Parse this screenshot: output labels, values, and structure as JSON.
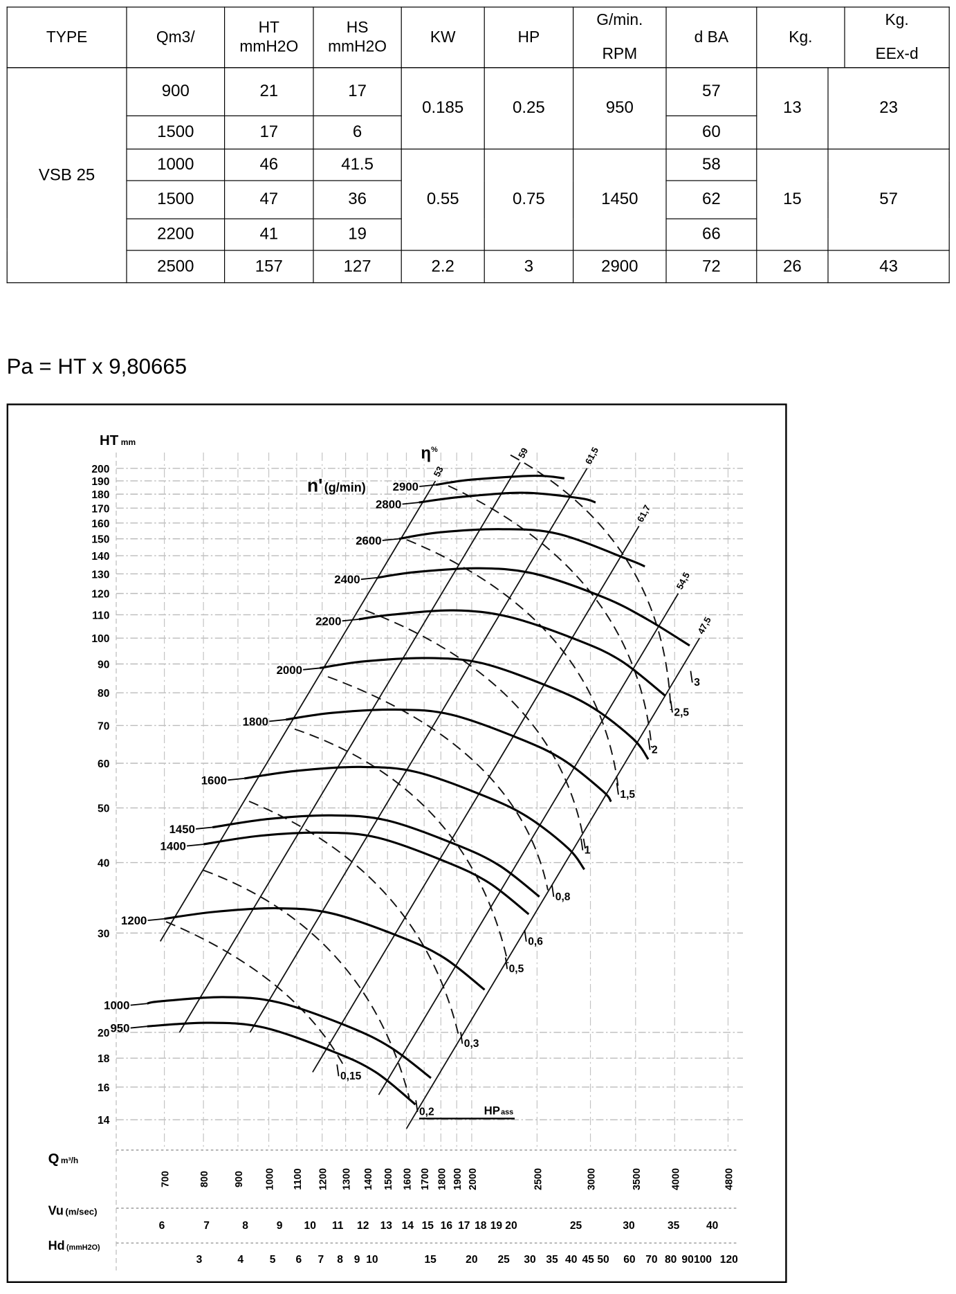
{
  "table": {
    "headers": {
      "type": "TYPE",
      "q": "Qm3/",
      "ht": {
        "line1": "HT",
        "line2": "mmH2O"
      },
      "hs": {
        "line1": "HS",
        "line2": "mmH2O"
      },
      "kw": "KW",
      "hp": "HP",
      "rpm": {
        "line1": "G/min.",
        "line2": "RPM"
      },
      "dba": "d BA",
      "kg": "Kg.",
      "kg_eexd": {
        "line1": "Kg.",
        "line2": "EEx-d"
      }
    },
    "type": "VSB 25",
    "rows": [
      {
        "q": "900",
        "ht": "21",
        "hs": "17",
        "dba": "57"
      },
      {
        "q": "1500",
        "ht": "17",
        "hs": "6",
        "dba": "60"
      },
      {
        "q": "1000",
        "ht": "46",
        "hs": "41.5",
        "dba": "58"
      },
      {
        "q": "1500",
        "ht": "47",
        "hs": "36",
        "dba": "62"
      },
      {
        "q": "2200",
        "ht": "41",
        "hs": "19",
        "dba": "66"
      },
      {
        "q": "2500",
        "ht": "157",
        "hs": "127",
        "dba": "72"
      }
    ],
    "groups": [
      {
        "kw": "0.185",
        "hp": "0.25",
        "rpm": "950",
        "kg": "13",
        "kg_eexd": "23"
      },
      {
        "kw": "0.55",
        "hp": "0.75",
        "rpm": "1450",
        "kg": "15",
        "kg_eexd": "57"
      },
      {
        "kw": "2.2",
        "hp": "3",
        "rpm": "2900",
        "kg": "26",
        "kg_eexd": "43"
      }
    ]
  },
  "formula": "Pa = HT x 9,80665",
  "chart_data": {
    "type": "line",
    "grid": true,
    "y_axis": {
      "label": "HT",
      "unit": "mm",
      "scale": "log",
      "range": [
        13,
        210
      ],
      "ticks": [
        200,
        190,
        180,
        170,
        160,
        150,
        140,
        130,
        120,
        110,
        100,
        90,
        80,
        70,
        60,
        50,
        40,
        30,
        20,
        18,
        16,
        14
      ]
    },
    "x_axis": {
      "label": "Q",
      "unit": "m³/h",
      "scale": "log",
      "range": [
        640,
        5000
      ],
      "ticks": [
        700,
        800,
        900,
        1000,
        1100,
        1200,
        1300,
        1400,
        1500,
        1600,
        1700,
        1800,
        1900,
        2000,
        2500,
        3000,
        3500,
        4000,
        4800
      ]
    },
    "vu_axis": {
      "label": "Vu",
      "unit": "(m/sec)",
      "ticks": [
        6,
        7,
        8,
        9,
        10,
        11,
        12,
        13,
        14,
        15,
        16,
        17,
        18,
        19,
        20,
        25,
        30,
        35,
        40
      ]
    },
    "hd_axis": {
      "label": "Hd",
      "unit": "(mmH2O)",
      "ticks": [
        3,
        4,
        5,
        6,
        7,
        8,
        9,
        10,
        15,
        20,
        25,
        30,
        35,
        40,
        45,
        50,
        60,
        70,
        80,
        90,
        100,
        120
      ]
    },
    "rpm_label": {
      "main": "n'",
      "unit": "(g/min)"
    },
    "efficiency_label": {
      "main": "η",
      "unit": "%"
    },
    "power_label": {
      "main": "HP",
      "sub": "ass"
    },
    "series": [
      {
        "name": "2900",
        "points": [
          [
            1770,
            187
          ],
          [
            2000,
            191
          ],
          [
            2480,
            194
          ],
          [
            2745,
            192
          ]
        ]
      },
      {
        "name": "2800",
        "points": [
          [
            1670,
            174
          ],
          [
            1931,
            178
          ],
          [
            2394,
            181
          ],
          [
            2897,
            177
          ],
          [
            3053,
            174
          ]
        ]
      },
      {
        "name": "2600",
        "points": [
          [
            1560,
            150
          ],
          [
            1793,
            154
          ],
          [
            2224,
            156
          ],
          [
            2690,
            153
          ],
          [
            3407,
            138
          ],
          [
            3613,
            134
          ]
        ]
      },
      {
        "name": "2400",
        "points": [
          [
            1450,
            128
          ],
          [
            1655,
            131
          ],
          [
            2052,
            133
          ],
          [
            2483,
            130
          ],
          [
            3145,
            118
          ],
          [
            3641,
            108
          ],
          [
            4210,
            97
          ]
        ]
      },
      {
        "name": "2200",
        "points": [
          [
            1360,
            108
          ],
          [
            1517,
            110
          ],
          [
            1881,
            112
          ],
          [
            2276,
            109
          ],
          [
            2883,
            99
          ],
          [
            3338,
            91
          ],
          [
            3875,
            79
          ]
        ]
      },
      {
        "name": "2000",
        "points": [
          [
            1190,
            88.5
          ],
          [
            1379,
            90.9
          ],
          [
            1710,
            92.2
          ],
          [
            2069,
            90.3
          ],
          [
            2620,
            81.8
          ],
          [
            3034,
            75.1
          ],
          [
            3475,
            66.2
          ],
          [
            3655,
            61
          ]
        ]
      },
      {
        "name": "1800",
        "points": [
          [
            1060,
            71.7
          ],
          [
            1241,
            73.7
          ],
          [
            1539,
            74.7
          ],
          [
            1862,
            73.2
          ],
          [
            2358,
            66.3
          ],
          [
            2730,
            60.9
          ],
          [
            3127,
            53.6
          ],
          [
            3219,
            51.3
          ]
        ]
      },
      {
        "name": "1600",
        "points": [
          [
            920,
            56.4
          ],
          [
            1103,
            58.2
          ],
          [
            1368,
            59.1
          ],
          [
            1655,
            57.9
          ],
          [
            2096,
            52.4
          ],
          [
            2427,
            48.1
          ],
          [
            2780,
            42.4
          ],
          [
            2938,
            38.9
          ]
        ]
      },
      {
        "name": "1450",
        "points": [
          [
            825,
            46.2
          ],
          [
            1000,
            47.8
          ],
          [
            1240,
            48.5
          ],
          [
            1500,
            47.5
          ],
          [
            1900,
            43
          ],
          [
            2200,
            39.5
          ],
          [
            2520,
            34.8
          ]
        ]
      },
      {
        "name": "1400",
        "points": [
          [
            800,
            43.1
          ],
          [
            966,
            44.6
          ],
          [
            1197,
            45.2
          ],
          [
            1448,
            44.3
          ],
          [
            1834,
            40.1
          ],
          [
            2124,
            36.8
          ],
          [
            2430,
            32.4
          ]
        ]
      },
      {
        "name": "1200",
        "points": [
          [
            700,
            31.8
          ],
          [
            828,
            32.7
          ],
          [
            1026,
            33.2
          ],
          [
            1241,
            32.5
          ],
          [
            1572,
            29.5
          ],
          [
            1821,
            27.1
          ],
          [
            2090,
            23.8
          ]
        ]
      },
      {
        "name": "1000",
        "points": [
          [
            660,
            22.5
          ],
          [
            690,
            22.7
          ],
          [
            855,
            23.1
          ],
          [
            1034,
            22.6
          ],
          [
            1310,
            20.5
          ],
          [
            1517,
            18.8
          ],
          [
            1740,
            16.6
          ]
        ]
      },
      {
        "name": "950",
        "points": [
          [
            660,
            20.5
          ],
          [
            812,
            20.8
          ],
          [
            983,
            20.4
          ],
          [
            1245,
            18.5
          ],
          [
            1441,
            17.0
          ],
          [
            1650,
            14.9
          ]
        ]
      }
    ],
    "efficiency_lines": [
      {
        "label": "53",
        "q_at_ht100": 1282,
        "ht_range": [
          29,
          190
        ]
      },
      {
        "label": "59",
        "q_at_ht100": 1648,
        "ht_range": [
          20,
          205
        ]
      },
      {
        "label": "61,5",
        "q_at_ht100": 2097,
        "ht_range": [
          20,
          200
        ]
      },
      {
        "label": "61,7",
        "q_at_ht100": 2817,
        "ht_range": [
          17,
          158
        ]
      },
      {
        "label": "54,5",
        "q_at_ht100": 3697,
        "ht_range": [
          15.5,
          120
        ]
      },
      {
        "label": "47,5",
        "q_at_ht100": 4355,
        "ht_range": [
          13.5,
          100
        ]
      }
    ],
    "power_labels": [
      "0,15",
      "0,2",
      "0,3",
      "0,5",
      "0,6",
      "0,8",
      "1",
      "1,5",
      "2",
      "2,5",
      "3"
    ]
  }
}
